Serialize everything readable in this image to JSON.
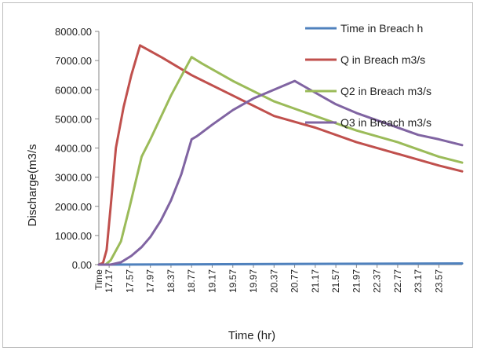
{
  "chart_data": {
    "type": "line",
    "title": "",
    "xlabel": "Time (hr)",
    "ylabel": "Discharge(m3/s",
    "ylim": [
      0,
      8000
    ],
    "yticks": [
      "0.00",
      "1000.00",
      "2000.00",
      "3000.00",
      "4000.00",
      "5000.00",
      "6000.00",
      "7000.00",
      "8000.00"
    ],
    "grid": false,
    "legend_position": "top-right",
    "x_start_label": "Time",
    "xlim": [
      16.97,
      24.02
    ],
    "xtick_values": [
      17.17,
      17.57,
      17.97,
      18.37,
      18.77,
      19.17,
      19.57,
      19.97,
      20.37,
      20.77,
      21.17,
      21.57,
      21.97,
      22.37,
      22.77,
      23.17,
      23.57
    ],
    "xtick_labels": [
      "17.17",
      "17.57",
      "17.97",
      "18.37",
      "18.77",
      "19.17",
      "19.57",
      "19.97",
      "20.37",
      "20.77",
      "21.17",
      "21.57",
      "21.97",
      "22.37",
      "22.77",
      "23.17",
      "23.57"
    ],
    "series": [
      {
        "name": "Time in Breach h",
        "color": "#4f81bd",
        "x": [
          16.97,
          24.02
        ],
        "y": [
          0,
          40
        ]
      },
      {
        "name": "Q in Breach m3/s",
        "color": "#c0504d",
        "x": [
          16.97,
          17.05,
          17.12,
          17.2,
          17.3,
          17.45,
          17.6,
          17.77,
          18.2,
          18.77,
          19.57,
          20.37,
          21.17,
          21.97,
          22.77,
          23.57,
          24.02
        ],
        "y": [
          0,
          60,
          500,
          2000,
          4000,
          5400,
          6500,
          7520,
          7100,
          6500,
          5800,
          5100,
          4700,
          4200,
          3800,
          3400,
          3200
        ]
      },
      {
        "name": "Q2 in Breach m3/s",
        "color": "#9bbb59",
        "x": [
          16.97,
          17.1,
          17.2,
          17.4,
          17.57,
          17.8,
          17.97,
          18.37,
          18.77,
          18.97,
          19.57,
          20.37,
          21.17,
          21.97,
          22.77,
          23.57,
          24.02
        ],
        "y": [
          0,
          0,
          150,
          800,
          2000,
          3700,
          4300,
          5800,
          7120,
          6900,
          6300,
          5600,
          5100,
          4600,
          4200,
          3700,
          3500
        ]
      },
      {
        "name": "Q3 in Breach m3/s",
        "color": "#8064a2",
        "x": [
          16.97,
          17.2,
          17.4,
          17.6,
          17.8,
          17.97,
          18.17,
          18.37,
          18.57,
          18.77,
          18.87,
          19.17,
          19.57,
          19.97,
          20.37,
          20.77,
          21.17,
          21.57,
          21.97,
          22.37,
          22.77,
          23.17,
          23.57,
          24.02
        ],
        "y": [
          0,
          0,
          80,
          300,
          600,
          950,
          1500,
          2200,
          3100,
          4300,
          4400,
          4800,
          5300,
          5700,
          6000,
          6300,
          5900,
          5500,
          5200,
          4950,
          4700,
          4450,
          4300,
          4100
        ]
      }
    ]
  }
}
